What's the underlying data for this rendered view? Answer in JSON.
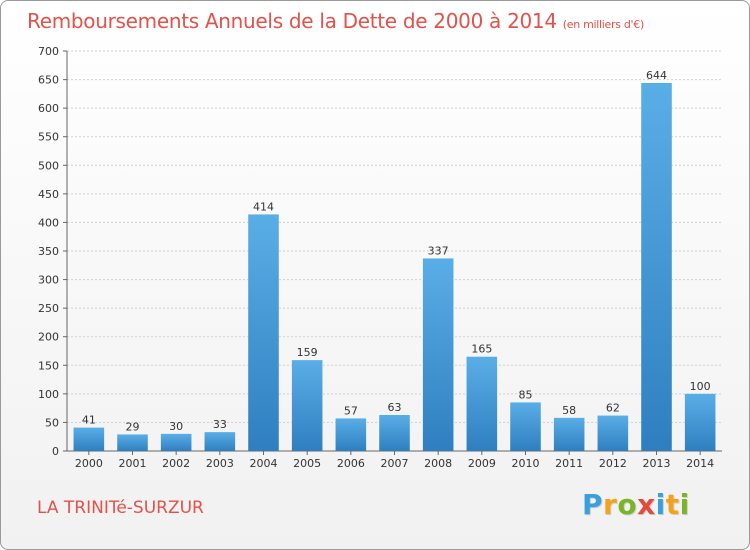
{
  "header": {
    "title": "Remboursements Annuels de la Dette de 2000 à 2014",
    "unit": "(en milliers d'€)"
  },
  "footer": {
    "commune": "LA TRINITé-SURZUR",
    "logo_letters": [
      {
        "ch": "P",
        "color": "#3aa0dc"
      },
      {
        "ch": "r",
        "color": "#f4a11c"
      },
      {
        "ch": "o",
        "color": "#7ab527"
      },
      {
        "ch": "x",
        "color": "#e64a3b"
      },
      {
        "ch": "i",
        "color": "#3aa0dc"
      },
      {
        "ch": "t",
        "color": "#f4a11c"
      },
      {
        "ch": "i",
        "color": "#7ab527"
      }
    ]
  },
  "colors": {
    "bar_top": "#5aaee6",
    "bar_bottom": "#2f7fc0",
    "title": "#e1524a",
    "grid": "#d0d0d0"
  },
  "chart_data": {
    "type": "bar",
    "title": "Remboursements Annuels de la Dette de 2000 à 2014",
    "subtitle": "(en milliers d'€)",
    "xlabel": "",
    "ylabel": "",
    "categories": [
      "2000",
      "2001",
      "2002",
      "2003",
      "2004",
      "2005",
      "2006",
      "2007",
      "2008",
      "2009",
      "2010",
      "2011",
      "2012",
      "2013",
      "2014"
    ],
    "values": [
      41,
      29,
      30,
      33,
      414,
      159,
      57,
      63,
      337,
      165,
      85,
      58,
      62,
      644,
      100
    ],
    "ylim": [
      0,
      700
    ],
    "yticks": [
      0,
      50,
      100,
      150,
      200,
      250,
      300,
      350,
      400,
      450,
      500,
      550,
      600,
      650,
      700
    ],
    "grid": true,
    "legend": "none"
  }
}
